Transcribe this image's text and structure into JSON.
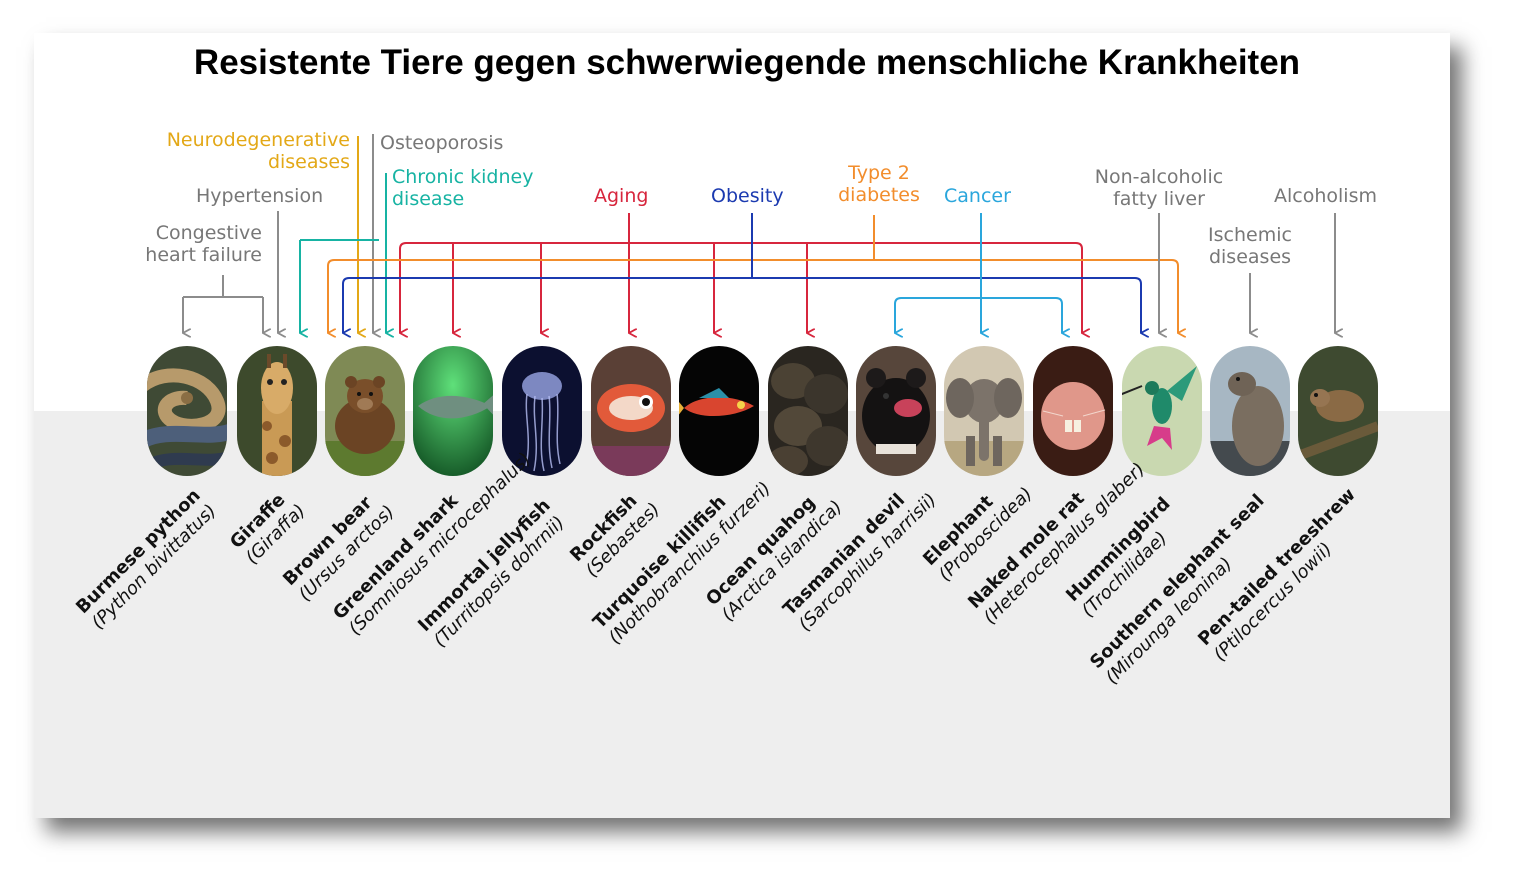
{
  "title": "Resistente Tiere gegen schwerwiegende menschliche Krankheiten",
  "colors": {
    "gray": "#8c8c8c",
    "yellow": "#e3a817",
    "teal": "#17b3a3",
    "red": "#d7263d",
    "blue": "#1b3ab0",
    "orange": "#f28d2c",
    "lightblue": "#2aa6dc"
  },
  "diseases": {
    "congestive": "Congestive heart failure",
    "hypertension": "Hypertension",
    "neuro": "Neurodegenerative diseases",
    "osteoporosis": "Osteoporosis",
    "kidney": "Chronic kidney disease",
    "aging": "Aging",
    "obesity": "Obesity",
    "diabetes": "Type 2 diabetes",
    "cancer": "Cancer",
    "nafld": "Non-alcoholic fatty liver",
    "ischemic": "Ischemic diseases",
    "alcoholism": "Alcoholism"
  },
  "animals": [
    {
      "common": "Burmese python",
      "scientific": "(Python bivittatus)",
      "icon": "python-photo"
    },
    {
      "common": "Giraffe",
      "scientific": "(Giraffa)",
      "icon": "giraffe-photo"
    },
    {
      "common": "Brown bear",
      "scientific": "(Ursus arctos)",
      "icon": "bear-photo"
    },
    {
      "common": "Greenland shark",
      "scientific": "(Somniosus microcephalus)",
      "icon": "shark-photo"
    },
    {
      "common": "Immortal jellyfish",
      "scientific": "(Turritopsis dohrnii)",
      "icon": "jellyfish-photo"
    },
    {
      "common": "Rockfish",
      "scientific": "(Sebastes)",
      "icon": "rockfish-photo"
    },
    {
      "common": "Turquoise killifish",
      "scientific": "(Nothobranchius furzeri)",
      "icon": "killifish-photo"
    },
    {
      "common": "Ocean quahog",
      "scientific": "(Arctica islandica)",
      "icon": "quahog-photo"
    },
    {
      "common": "Tasmanian devil",
      "scientific": "(Sarcophilus harrisii)",
      "icon": "devil-photo"
    },
    {
      "common": "Elephant",
      "scientific": "(Proboscidea)",
      "icon": "elephant-photo"
    },
    {
      "common": "Naked mole rat",
      "scientific": "(Heterocephalus glaber)",
      "icon": "molerat-photo"
    },
    {
      "common": "Hummingbird",
      "scientific": "(Trochilidae)",
      "icon": "hummingbird-photo"
    },
    {
      "common": "Southern elephant seal",
      "scientific": "(Mirounga leonina)",
      "icon": "seal-photo"
    },
    {
      "common": "Pen-tailed treeshrew",
      "scientific": "(Ptilocercus lowii)",
      "icon": "treeshrew-photo"
    }
  ]
}
